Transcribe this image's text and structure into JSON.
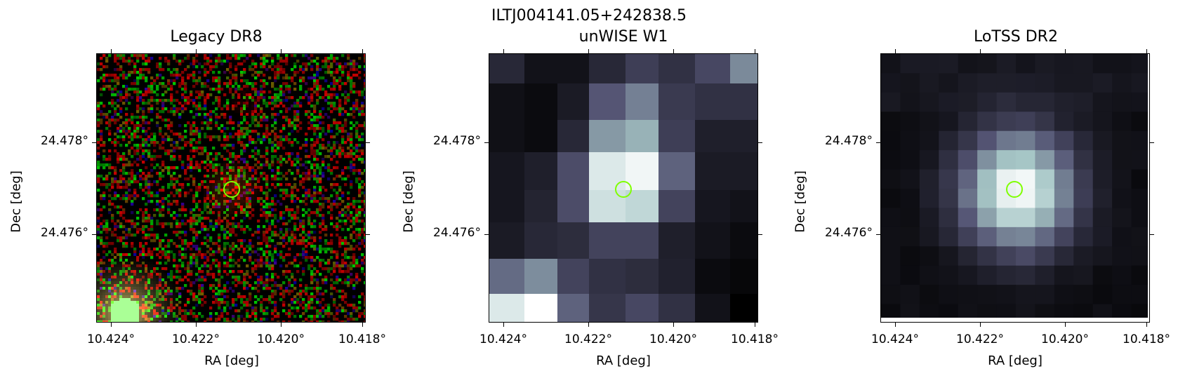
{
  "figure": {
    "suptitle": "ILTJ004141.05+242838.5"
  },
  "panels": [
    {
      "title": "Legacy DR8",
      "xlabel": "RA [deg]",
      "ylabel": "Dec [deg]",
      "xticks": [
        "10.424°",
        "10.422°",
        "10.420°",
        "10.418°"
      ],
      "yticks": [
        "24.478°",
        "24.476°"
      ],
      "image": "rgb-noise-optical",
      "marker_color": "#7fff00"
    },
    {
      "title": "unWISE W1",
      "xlabel": "RA [deg]",
      "ylabel": "Dec [deg]",
      "xticks": [
        "10.424°",
        "10.422°",
        "10.420°",
        "10.418°"
      ],
      "yticks": [
        "24.478°",
        "24.476°"
      ],
      "image": "bone-colormap-pixelated",
      "marker_color": "#7fff00"
    },
    {
      "title": "LoTSS DR2",
      "xlabel": "RA [deg]",
      "ylabel": "Dec [deg]",
      "xticks": [
        "10.424°",
        "10.422°",
        "10.420°",
        "10.418°"
      ],
      "yticks": [
        "24.478°",
        "24.476°"
      ],
      "image": "bone-colormap-smooth",
      "marker_color": "#7fff00"
    }
  ]
}
